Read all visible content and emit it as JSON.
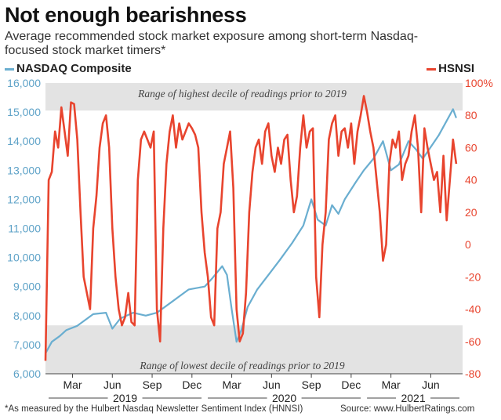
{
  "title": "Not enough bearishness",
  "subtitle": "Average recommended stock market exposure among short-term Nasdaq-focused stock market timers*",
  "legend": {
    "left_label": "NASDAQ Composite",
    "right_label": "HSNSI"
  },
  "colors": {
    "nasdaq": "#6aaed0",
    "hsnsi": "#e8442e",
    "band": "#e3e3e3",
    "left_axis": "#5fa3c8",
    "right_axis": "#e8442e"
  },
  "footnote": "*As measured by the Hulbert Nasdaq Newsletter Sentiment Index (HNNSI)",
  "source": "Source: www.HulbertRatings.com",
  "chart_data": {
    "type": "line",
    "x_months": [
      "Mar",
      "Jun",
      "Sep",
      "Dec",
      "Mar",
      "Jun",
      "Sep",
      "Dec",
      "Mar",
      "Jun"
    ],
    "x_years": [
      "2019",
      "2020",
      "2021"
    ],
    "left_axis": {
      "ticks": [
        "16,000",
        "15,000",
        "14,000",
        "13,000",
        "12,000",
        "11,000",
        "10,000",
        "9,000",
        "8,000",
        "7,000",
        "6,000"
      ],
      "ylim": [
        6000,
        16000
      ]
    },
    "right_axis": {
      "ticks": [
        "100%",
        "80",
        "60",
        "40",
        "20",
        "0",
        "-20",
        "-40",
        "-60",
        "-80"
      ],
      "ylim": [
        -80,
        100
      ]
    },
    "annotations": {
      "upper_band": {
        "label": "Range of highest decile of readings prior to 2019",
        "hsnsi_range": [
          83,
          100
        ]
      },
      "lower_band": {
        "label": "Range of lowest decile of readings prior to 2019",
        "hsnsi_range": [
          -80,
          -50
        ]
      }
    },
    "series": [
      {
        "name": "NASDAQ Composite",
        "axis": "left",
        "x": [
          2019.0,
          2019.04,
          2019.09,
          2019.13,
          2019.2,
          2019.3,
          2019.38,
          2019.42,
          2019.47,
          2019.55,
          2019.63,
          2019.7,
          2019.8,
          2019.9,
          2020.0,
          2020.05,
          2020.11,
          2020.14,
          2020.17,
          2020.2,
          2020.23,
          2020.27,
          2020.33,
          2020.4,
          2020.47,
          2020.55,
          2020.62,
          2020.67,
          2020.71,
          2020.76,
          2020.8,
          2020.84,
          2020.88,
          2020.95,
          2021.0,
          2021.06,
          2021.12,
          2021.17,
          2021.22,
          2021.28,
          2021.33,
          2021.37,
          2021.42,
          2021.47,
          2021.52,
          2021.56,
          2021.58
        ],
        "values": [
          6700,
          7100,
          7300,
          7500,
          7650,
          8050,
          8100,
          7550,
          7900,
          8100,
          8000,
          8100,
          8500,
          8900,
          9000,
          9300,
          9700,
          9400,
          8200,
          7100,
          7500,
          8300,
          8900,
          9400,
          9900,
          10500,
          11100,
          12000,
          11300,
          11100,
          11800,
          11500,
          12000,
          12600,
          13000,
          13400,
          14000,
          13000,
          13200,
          14000,
          13700,
          13400,
          13800,
          14200,
          14700,
          15100,
          14800
        ]
      },
      {
        "name": "HSNSI",
        "axis": "right",
        "x": [
          2019.0,
          2019.02,
          2019.04,
          2019.06,
          2019.08,
          2019.1,
          2019.12,
          2019.14,
          2019.16,
          2019.18,
          2019.2,
          2019.22,
          2019.24,
          2019.26,
          2019.28,
          2019.3,
          2019.32,
          2019.34,
          2019.36,
          2019.38,
          2019.4,
          2019.42,
          2019.44,
          2019.46,
          2019.48,
          2019.5,
          2019.52,
          2019.54,
          2019.56,
          2019.58,
          2019.6,
          2019.62,
          2019.64,
          2019.66,
          2019.68,
          2019.7,
          2019.72,
          2019.74,
          2019.76,
          2019.78,
          2019.8,
          2019.82,
          2019.84,
          2019.86,
          2019.88,
          2019.9,
          2019.92,
          2019.94,
          2019.96,
          2019.98,
          2020.0,
          2020.02,
          2020.04,
          2020.06,
          2020.08,
          2020.1,
          2020.12,
          2020.14,
          2020.16,
          2020.18,
          2020.2,
          2020.22,
          2020.24,
          2020.26,
          2020.28,
          2020.3,
          2020.32,
          2020.34,
          2020.36,
          2020.38,
          2020.4,
          2020.42,
          2020.44,
          2020.46,
          2020.48,
          2020.5,
          2020.52,
          2020.54,
          2020.56,
          2020.58,
          2020.6,
          2020.62,
          2020.64,
          2020.66,
          2020.68,
          2020.7,
          2020.72,
          2020.74,
          2020.76,
          2020.78,
          2020.8,
          2020.82,
          2020.84,
          2020.86,
          2020.88,
          2020.9,
          2020.92,
          2020.94,
          2020.96,
          2020.98,
          2021.0,
          2021.02,
          2021.04,
          2021.06,
          2021.08,
          2021.1,
          2021.12,
          2021.14,
          2021.16,
          2021.18,
          2021.2,
          2021.22,
          2021.24,
          2021.26,
          2021.28,
          2021.3,
          2021.32,
          2021.34,
          2021.36,
          2021.38,
          2021.4,
          2021.42,
          2021.44,
          2021.46,
          2021.48,
          2021.5,
          2021.52,
          2021.54,
          2021.56,
          2021.58
        ],
        "values": [
          -72,
          40,
          45,
          70,
          60,
          85,
          70,
          55,
          88,
          87,
          65,
          20,
          -20,
          -30,
          -40,
          10,
          30,
          60,
          75,
          80,
          60,
          10,
          -20,
          -40,
          -50,
          -45,
          -30,
          -48,
          -50,
          40,
          65,
          70,
          65,
          60,
          70,
          -40,
          -60,
          10,
          50,
          70,
          80,
          60,
          75,
          65,
          70,
          75,
          72,
          68,
          60,
          20,
          -5,
          -20,
          -45,
          -50,
          10,
          20,
          50,
          60,
          70,
          35,
          -40,
          -60,
          -55,
          -30,
          20,
          45,
          60,
          65,
          50,
          70,
          75,
          55,
          45,
          60,
          50,
          65,
          68,
          40,
          20,
          30,
          60,
          80,
          60,
          70,
          72,
          -20,
          -45,
          0,
          20,
          65,
          75,
          80,
          55,
          70,
          72,
          60,
          75,
          50,
          70,
          80,
          92,
          82,
          70,
          60,
          40,
          20,
          -10,
          0,
          50,
          65,
          60,
          70,
          40,
          50,
          55,
          70,
          80,
          60,
          20,
          72,
          60,
          50,
          40,
          45,
          20,
          55,
          15,
          40,
          65,
          50
        ]
      }
    ]
  }
}
